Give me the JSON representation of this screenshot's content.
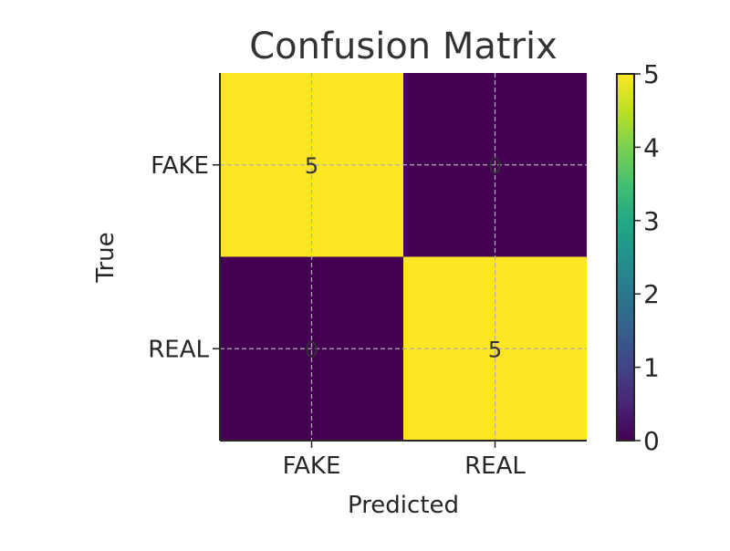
{
  "chart_data": {
    "type": "heatmap",
    "title": "Confusion Matrix",
    "xlabel": "Predicted",
    "ylabel": "True",
    "x_categories": [
      "FAKE",
      "REAL"
    ],
    "y_categories": [
      "FAKE",
      "REAL"
    ],
    "values": [
      [
        5,
        0
      ],
      [
        0,
        5
      ]
    ],
    "colormap": "viridis",
    "colorbar": {
      "min": 0,
      "max": 5,
      "ticks": [
        "0",
        "1",
        "2",
        "3",
        "4",
        "5"
      ]
    },
    "grid": true,
    "colors": {
      "low": "#440154",
      "high": "#fde725"
    }
  }
}
